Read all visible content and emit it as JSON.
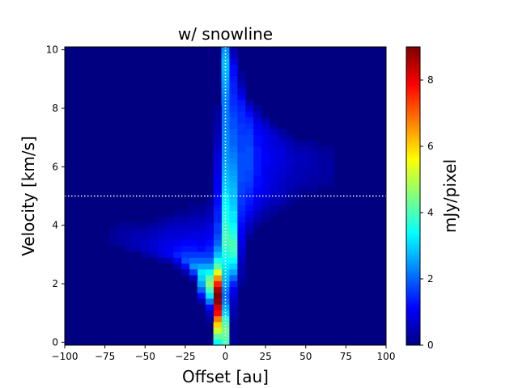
{
  "chart_data": {
    "type": "heatmap",
    "title": "w/ snowline",
    "xlabel": "Offset [au]",
    "ylabel": "Velocity [km/s]",
    "xlim": [
      -100,
      100
    ],
    "ylim": [
      -0.1,
      10.1
    ],
    "xticks": [
      "−100",
      "−75",
      "−50",
      "−25",
      "0",
      "25",
      "50",
      "75",
      "100"
    ],
    "xtick_values": [
      -100,
      -75,
      -50,
      -25,
      0,
      25,
      50,
      75,
      100
    ],
    "yticks": [
      "0",
      "2",
      "4",
      "6",
      "8",
      "10"
    ],
    "ytick_values": [
      0,
      2,
      4,
      6,
      8,
      10
    ],
    "colorbar": {
      "label": "mJy/pixel",
      "range": [
        0,
        9
      ],
      "colormap": "jet",
      "ticks": [
        "0",
        "2",
        "4",
        "6",
        "8"
      ],
      "tick_values": [
        0,
        2,
        4,
        6,
        8
      ]
    },
    "reference_lines": {
      "vertical_x": 0,
      "horizontal_y": 5.0,
      "style": "dotted",
      "color": "#ffffff"
    },
    "cell_size": {
      "offset_au": 5,
      "velocity_kms": 0.2
    },
    "emission_cells": [
      {
        "x": 0,
        "v": [
          0.0,
          0.2,
          0.4,
          0.6,
          0.8,
          1.0,
          1.2,
          1.4,
          1.6,
          1.8,
          2.0,
          2.2,
          2.4,
          2.6,
          2.8,
          3.0,
          3.2,
          3.4,
          3.6,
          3.8,
          4.0,
          4.2,
          4.4,
          4.6,
          4.8,
          5.0,
          5.2,
          5.4,
          5.6,
          5.8,
          6.0,
          6.2,
          6.4,
          6.6,
          6.8,
          7.0,
          7.2,
          7.4,
          7.6,
          7.8,
          8.0,
          8.2,
          8.4,
          8.6,
          8.8,
          9.0,
          9.2,
          9.4,
          9.6,
          9.8,
          10.0
        ],
        "vals": [
          4.0,
          4.2,
          4.4,
          4.2,
          3.8,
          3.0,
          2.6,
          2.2,
          2.0,
          2.2,
          2.6,
          2.8,
          3.0,
          3.2,
          3.4,
          3.6,
          3.8,
          4.0,
          4.0,
          3.9,
          3.8,
          3.6,
          3.6,
          3.4,
          3.3,
          3.2,
          3.0,
          2.9,
          2.8,
          2.7,
          2.6,
          2.5,
          2.4,
          2.4,
          2.4,
          2.3,
          2.3,
          2.2,
          2.2,
          2.2,
          2.2,
          2.2,
          2.3,
          2.4,
          2.5,
          2.6,
          2.7,
          2.8,
          2.8,
          2.6,
          2.4
        ]
      },
      {
        "x": -5,
        "v": [
          0.0,
          0.2,
          0.4,
          0.6,
          0.8,
          1.0,
          1.2,
          1.4,
          1.6,
          1.8,
          2.0,
          2.2,
          2.4,
          2.6,
          2.8,
          3.0,
          3.2,
          3.4,
          3.6,
          3.8,
          4.0,
          4.2,
          4.4,
          4.6,
          4.8,
          5.0,
          5.2,
          5.4,
          5.6,
          5.8,
          6.0,
          6.2,
          6.4,
          6.6,
          6.8,
          7.0,
          7.2,
          7.4,
          7.6,
          7.8,
          8.0
        ],
        "vals": [
          3.4,
          4.2,
          5.2,
          6.0,
          6.8,
          7.8,
          8.2,
          8.8,
          9.0,
          8.6,
          7.6,
          6.6,
          5.4,
          4.2,
          3.6,
          2.8,
          2.4,
          2.0,
          1.8,
          1.6,
          1.6,
          1.4,
          1.4,
          1.3,
          1.2,
          1.2,
          1.1,
          1.0,
          1.0,
          0.9,
          0.9,
          0.8,
          0.8,
          0.7,
          0.6,
          0.5,
          0.4,
          0.4,
          0.3,
          0.3,
          0.2
        ]
      },
      {
        "x": 5,
        "v": [
          0.0,
          0.2,
          0.4,
          0.6,
          0.8,
          1.0,
          1.2,
          1.4,
          1.6,
          1.8,
          2.0,
          2.2,
          2.4,
          2.6,
          2.8,
          3.0,
          3.2,
          3.4,
          3.6,
          3.8,
          4.0,
          4.2,
          4.4,
          4.6,
          4.8,
          5.0,
          5.2,
          5.4,
          5.6,
          5.8,
          6.0,
          6.2,
          6.4,
          6.6,
          6.8,
          7.0,
          7.2,
          7.4,
          7.6,
          7.8,
          8.0,
          8.2,
          8.4,
          8.6,
          8.8,
          9.0,
          9.2,
          9.4,
          9.6,
          9.8,
          10.0
        ],
        "vals": [
          0.2,
          0.2,
          0.2,
          0.2,
          0.3,
          0.4,
          0.5,
          0.6,
          0.8,
          1.0,
          1.4,
          2.0,
          2.6,
          3.0,
          3.4,
          3.8,
          4.0,
          4.0,
          3.8,
          3.6,
          3.4,
          3.2,
          3.2,
          3.0,
          2.9,
          2.8,
          2.8,
          2.7,
          2.6,
          2.5,
          2.4,
          2.3,
          2.2,
          2.1,
          2.0,
          2.0,
          1.9,
          1.8,
          1.8,
          1.7,
          1.6,
          1.5,
          1.5,
          1.4,
          1.4,
          1.3,
          1.2,
          1.2,
          0.9,
          0.6,
          0.4
        ]
      },
      {
        "x": 10,
        "v": [
          2.0,
          2.2,
          2.4,
          2.6,
          2.8,
          3.0,
          3.2,
          3.4,
          3.6,
          3.8,
          4.0,
          4.2,
          4.4,
          4.6,
          4.8,
          5.0,
          5.2,
          5.4,
          5.6,
          5.8,
          6.0,
          6.2,
          6.4,
          6.6,
          6.8,
          7.0,
          7.2,
          7.4,
          7.6,
          7.8,
          8.0,
          8.2,
          8.4,
          8.6,
          8.8,
          9.0,
          9.2
        ],
        "vals": [
          0.2,
          0.3,
          0.4,
          0.5,
          0.6,
          0.7,
          0.8,
          0.9,
          1.0,
          1.1,
          1.2,
          1.3,
          1.4,
          1.5,
          1.6,
          1.6,
          1.7,
          1.7,
          1.8,
          1.8,
          1.8,
          1.8,
          1.8,
          1.7,
          1.7,
          1.7,
          1.6,
          1.6,
          1.5,
          1.5,
          1.4,
          1.3,
          1.0,
          0.7,
          0.5,
          0.3,
          0.2
        ]
      },
      {
        "x": 15,
        "v": [
          3.6,
          3.8,
          4.0,
          4.2,
          4.4,
          4.6,
          4.8,
          5.0,
          5.2,
          5.4,
          5.6,
          5.8,
          6.0,
          6.2,
          6.4,
          6.6,
          6.8,
          7.0,
          7.2,
          7.4,
          7.6,
          7.8,
          8.0,
          8.2
        ],
        "vals": [
          0.2,
          0.4,
          0.6,
          0.8,
          1.0,
          1.2,
          1.3,
          1.4,
          1.5,
          1.6,
          1.7,
          1.7,
          1.8,
          1.8,
          1.8,
          1.8,
          1.7,
          1.7,
          1.6,
          1.5,
          1.4,
          1.2,
          0.8,
          0.4
        ]
      },
      {
        "x": 20,
        "v": [
          4.0,
          4.2,
          4.4,
          4.6,
          4.8,
          5.0,
          5.2,
          5.4,
          5.6,
          5.8,
          6.0,
          6.2,
          6.4,
          6.6,
          6.8,
          7.0,
          7.2,
          7.4,
          7.6,
          7.8,
          8.0
        ],
        "vals": [
          0.2,
          0.4,
          0.6,
          0.8,
          0.9,
          1.0,
          1.1,
          1.2,
          1.2,
          1.3,
          1.3,
          1.3,
          1.3,
          1.3,
          1.2,
          1.2,
          1.1,
          1.0,
          0.8,
          0.5,
          0.3
        ]
      },
      {
        "x": 25,
        "v": [
          4.2,
          4.4,
          4.6,
          4.8,
          5.0,
          5.2,
          5.4,
          5.6,
          5.8,
          6.0,
          6.2,
          6.4,
          6.6,
          6.8,
          7.0,
          7.2,
          7.4,
          7.6
        ],
        "vals": [
          0.2,
          0.3,
          0.5,
          0.7,
          0.8,
          0.9,
          1.0,
          1.0,
          1.0,
          1.0,
          1.1,
          1.1,
          1.0,
          1.0,
          1.0,
          0.9,
          0.7,
          0.4
        ]
      },
      {
        "x": 30,
        "v": [
          4.4,
          4.6,
          4.8,
          5.0,
          5.2,
          5.4,
          5.6,
          5.8,
          6.0,
          6.2,
          6.4,
          6.6,
          6.8,
          7.0,
          7.2,
          7.4
        ],
        "vals": [
          0.2,
          0.3,
          0.5,
          0.6,
          0.7,
          0.8,
          0.8,
          0.8,
          0.9,
          0.9,
          0.9,
          0.9,
          0.8,
          0.8,
          0.6,
          0.3
        ]
      },
      {
        "x": 35,
        "v": [
          4.6,
          4.8,
          5.0,
          5.2,
          5.4,
          5.6,
          5.8,
          6.0,
          6.2,
          6.4,
          6.6,
          6.8,
          7.0,
          7.2
        ],
        "vals": [
          0.2,
          0.4,
          0.5,
          0.6,
          0.6,
          0.7,
          0.7,
          0.8,
          0.8,
          0.8,
          0.8,
          0.7,
          0.5,
          0.3
        ]
      },
      {
        "x": 40,
        "v": [
          4.8,
          5.0,
          5.2,
          5.4,
          5.6,
          5.8,
          6.0,
          6.2,
          6.4,
          6.6,
          6.8,
          7.0
        ],
        "vals": [
          0.2,
          0.3,
          0.4,
          0.5,
          0.5,
          0.6,
          0.6,
          0.7,
          0.6,
          0.6,
          0.5,
          0.3
        ]
      },
      {
        "x": 45,
        "v": [
          5.0,
          5.2,
          5.4,
          5.6,
          5.8,
          6.0,
          6.2,
          6.4,
          6.6,
          6.8
        ],
        "vals": [
          0.2,
          0.3,
          0.4,
          0.5,
          0.5,
          0.5,
          0.5,
          0.5,
          0.4,
          0.3
        ]
      },
      {
        "x": 50,
        "v": [
          5.2,
          5.4,
          5.6,
          5.8,
          6.0,
          6.2,
          6.4,
          6.6,
          6.8
        ],
        "vals": [
          0.2,
          0.3,
          0.4,
          0.4,
          0.5,
          0.5,
          0.5,
          0.4,
          0.2
        ]
      },
      {
        "x": 55,
        "v": [
          5.2,
          5.4,
          5.6,
          5.8,
          6.0,
          6.2,
          6.4,
          6.6,
          6.8
        ],
        "vals": [
          0.2,
          0.3,
          0.3,
          0.4,
          0.4,
          0.4,
          0.4,
          0.3,
          0.2
        ]
      },
      {
        "x": 60,
        "v": [
          5.4,
          5.6,
          5.8,
          6.0,
          6.2,
          6.4,
          6.6
        ],
        "vals": [
          0.2,
          0.3,
          0.3,
          0.3,
          0.3,
          0.3,
          0.2
        ]
      },
      {
        "x": 65,
        "v": [
          5.4,
          5.6,
          5.8,
          6.0,
          6.2,
          6.4,
          6.6
        ],
        "vals": [
          0.2,
          0.2,
          0.3,
          0.3,
          0.3,
          0.2,
          0.2
        ]
      },
      {
        "x": -10,
        "v": [
          0.8,
          1.0,
          1.2,
          1.4,
          1.6,
          1.8,
          2.0,
          2.2,
          2.4,
          2.6,
          2.8,
          3.0,
          3.2,
          3.4,
          3.6,
          3.8,
          4.0,
          4.2,
          4.4,
          4.6,
          4.8
        ],
        "vals": [
          0.3,
          0.6,
          1.2,
          2.2,
          3.2,
          4.0,
          4.6,
          4.2,
          3.4,
          2.6,
          2.0,
          1.6,
          1.4,
          1.2,
          1.0,
          0.9,
          0.8,
          0.6,
          0.5,
          0.4,
          0.2
        ]
      },
      {
        "x": -15,
        "v": [
          1.4,
          1.6,
          1.8,
          2.0,
          2.2,
          2.4,
          2.6,
          2.8,
          3.0,
          3.2,
          3.4,
          3.6,
          3.8,
          4.0,
          4.2,
          4.4,
          4.6
        ],
        "vals": [
          0.4,
          1.2,
          2.0,
          2.6,
          3.0,
          3.2,
          2.6,
          2.0,
          1.6,
          1.2,
          1.0,
          0.9,
          0.8,
          0.6,
          0.5,
          0.3,
          0.2
        ]
      },
      {
        "x": -20,
        "v": [
          2.2,
          2.4,
          2.6,
          2.8,
          3.0,
          3.2,
          3.4,
          3.6,
          3.8,
          4.0,
          4.2,
          4.4,
          4.6
        ],
        "vals": [
          0.6,
          1.6,
          2.4,
          2.0,
          1.6,
          1.3,
          1.1,
          0.9,
          0.8,
          0.6,
          0.5,
          0.3,
          0.2
        ]
      },
      {
        "x": -25,
        "v": [
          2.4,
          2.6,
          2.8,
          3.0,
          3.2,
          3.4,
          3.6,
          3.8,
          4.0,
          4.2,
          4.4
        ],
        "vals": [
          0.4,
          1.2,
          1.8,
          1.6,
          1.3,
          1.1,
          0.9,
          0.7,
          0.6,
          0.4,
          0.2
        ]
      },
      {
        "x": -30,
        "v": [
          2.6,
          2.8,
          3.0,
          3.2,
          3.4,
          3.6,
          3.8,
          4.0,
          4.2,
          4.4
        ],
        "vals": [
          0.4,
          1.0,
          1.4,
          1.2,
          1.0,
          0.8,
          0.7,
          0.6,
          0.4,
          0.2
        ]
      },
      {
        "x": -35,
        "v": [
          2.8,
          3.0,
          3.2,
          3.4,
          3.6,
          3.8,
          4.0,
          4.2
        ],
        "vals": [
          0.4,
          1.0,
          1.0,
          0.9,
          0.8,
          0.7,
          0.5,
          0.3
        ]
      },
      {
        "x": -40,
        "v": [
          2.8,
          3.0,
          3.2,
          3.4,
          3.6,
          3.8,
          4.0,
          4.2
        ],
        "vals": [
          0.3,
          0.8,
          0.9,
          0.8,
          0.7,
          0.6,
          0.4,
          0.2
        ]
      },
      {
        "x": -45,
        "v": [
          3.0,
          3.2,
          3.4,
          3.6,
          3.8,
          4.0
        ],
        "vals": [
          0.5,
          0.7,
          0.7,
          0.6,
          0.5,
          0.3
        ]
      },
      {
        "x": -50,
        "v": [
          3.0,
          3.2,
          3.4,
          3.6,
          3.8,
          4.0
        ],
        "vals": [
          0.3,
          0.6,
          0.6,
          0.5,
          0.4,
          0.2
        ]
      },
      {
        "x": -55,
        "v": [
          3.2,
          3.4,
          3.6,
          3.8,
          4.0
        ],
        "vals": [
          0.4,
          0.5,
          0.5,
          0.4,
          0.2
        ]
      },
      {
        "x": -60,
        "v": [
          3.2,
          3.4,
          3.6,
          3.8,
          4.0
        ],
        "vals": [
          0.3,
          0.4,
          0.4,
          0.3,
          0.2
        ]
      },
      {
        "x": -65,
        "v": [
          3.4,
          3.6,
          3.8,
          4.0
        ],
        "vals": [
          0.3,
          0.3,
          0.3,
          0.2
        ]
      },
      {
        "x": -70,
        "v": [
          3.4,
          3.6,
          3.8
        ],
        "vals": [
          0.2,
          0.2,
          0.2
        ]
      }
    ]
  }
}
